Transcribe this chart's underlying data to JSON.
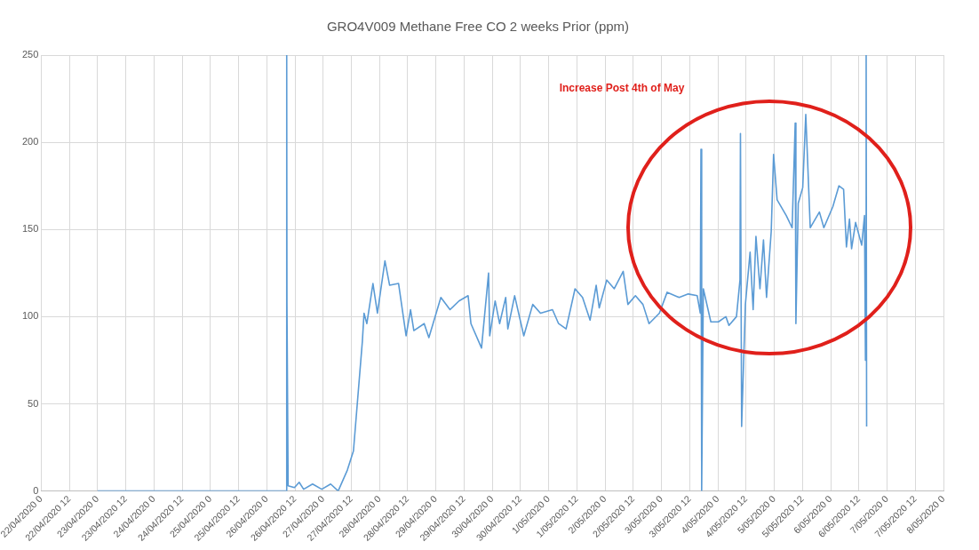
{
  "chart_data": {
    "type": "line",
    "title": "GRO4V009 Methane Free CO 2 weeks Prior (ppm)",
    "annotations": [
      "Increase Post 4th of May"
    ],
    "xlim": [
      "2020-04-22T00:00",
      "2020-05-08T00:00"
    ],
    "xticks": [
      {
        "value": "2020-04-22T00:00",
        "label": "22/04/2020 0"
      },
      {
        "value": "2020-04-22T12:00",
        "label": "22/04/2020 12"
      },
      {
        "value": "2020-04-23T00:00",
        "label": "23/04/2020 0"
      },
      {
        "value": "2020-04-23T12:00",
        "label": "23/04/2020 12"
      },
      {
        "value": "2020-04-24T00:00",
        "label": "24/04/2020 0"
      },
      {
        "value": "2020-04-24T12:00",
        "label": "24/04/2020 12"
      },
      {
        "value": "2020-04-25T00:00",
        "label": "25/04/2020 0"
      },
      {
        "value": "2020-04-25T12:00",
        "label": "25/04/2020 12"
      },
      {
        "value": "2020-04-26T00:00",
        "label": "26/04/2020 0"
      },
      {
        "value": "2020-04-26T12:00",
        "label": "26/04/2020 12"
      },
      {
        "value": "2020-04-27T00:00",
        "label": "27/04/2020 0"
      },
      {
        "value": "2020-04-27T12:00",
        "label": "27/04/2020 12"
      },
      {
        "value": "2020-04-28T00:00",
        "label": "28/04/2020 0"
      },
      {
        "value": "2020-04-28T12:00",
        "label": "28/04/2020 12"
      },
      {
        "value": "2020-04-29T00:00",
        "label": "29/04/2020 0"
      },
      {
        "value": "2020-04-29T12:00",
        "label": "29/04/2020 12"
      },
      {
        "value": "2020-04-30T00:00",
        "label": "30/04/2020 0"
      },
      {
        "value": "2020-04-30T12:00",
        "label": "30/04/2020 12"
      },
      {
        "value": "2020-05-01T00:00",
        "label": "1/05/2020 0"
      },
      {
        "value": "2020-05-01T12:00",
        "label": "1/05/2020 12"
      },
      {
        "value": "2020-05-02T00:00",
        "label": "2/05/2020 0"
      },
      {
        "value": "2020-05-02T12:00",
        "label": "2/05/2020 12"
      },
      {
        "value": "2020-05-03T00:00",
        "label": "3/05/2020 0"
      },
      {
        "value": "2020-05-03T12:00",
        "label": "3/05/2020 12"
      },
      {
        "value": "2020-05-04T00:00",
        "label": "4/05/2020 0"
      },
      {
        "value": "2020-05-04T12:00",
        "label": "4/05/2020 12"
      },
      {
        "value": "2020-05-05T00:00",
        "label": "5/05/2020 0"
      },
      {
        "value": "2020-05-05T12:00",
        "label": "5/05/2020 12"
      },
      {
        "value": "2020-05-06T00:00",
        "label": "6/05/2020 0"
      },
      {
        "value": "2020-05-06T12:00",
        "label": "6/05/2020 12"
      },
      {
        "value": "2020-05-07T00:00",
        "label": "7/05/2020 0"
      },
      {
        "value": "2020-05-07T12:00",
        "label": "7/05/2020 12"
      },
      {
        "value": "2020-05-08T00:00",
        "label": "8/05/2020 0"
      }
    ],
    "ylim": [
      0,
      250
    ],
    "yticks": [
      0,
      50,
      100,
      150,
      200,
      250
    ],
    "grid": true,
    "marker": "none",
    "series": [
      {
        "color": "#5b9bd5",
        "x": [
          "2020-04-23T00:00",
          "2020-04-26T08:24",
          "2020-04-26T08:30",
          "2020-04-26T08:36",
          "2020-04-26T09:06",
          "2020-04-26T11:48",
          "2020-04-26T13:48",
          "2020-04-26T15:42",
          "2020-04-26T19:30",
          "2020-04-26T23:24",
          "2020-04-27T03:12",
          "2020-04-27T06:24",
          "2020-04-27T10:18",
          "2020-04-27T12:54",
          "2020-04-27T16:42",
          "2020-04-27T17:24",
          "2020-04-27T18:36",
          "2020-04-27T21:12",
          "2020-04-27T23:06",
          "2020-04-28T02:18",
          "2020-04-28T04:18",
          "2020-04-28T08:06",
          "2020-04-28T11:18",
          "2020-04-28T13:12",
          "2020-04-28T14:36",
          "2020-04-28T19:00",
          "2020-04-28T21:00",
          "2020-04-29T02:06",
          "2020-04-29T06:00",
          "2020-04-29T09:48",
          "2020-04-29T13:42",
          "2020-04-29T14:54",
          "2020-04-29T19:24",
          "2020-04-29T22:24",
          "2020-04-29T22:54",
          "2020-04-30T01:12",
          "2020-04-30T03:06",
          "2020-04-30T05:42",
          "2020-04-30T06:36",
          "2020-04-30T09:30",
          "2020-04-30T13:24",
          "2020-04-30T17:12",
          "2020-04-30T20:30",
          "2020-05-01T01:36",
          "2020-05-01T04:12",
          "2020-05-01T07:24",
          "2020-05-01T11:12",
          "2020-05-01T14:24",
          "2020-05-01T17:36",
          "2020-05-01T20:12",
          "2020-05-01T21:30",
          "2020-05-02T00:42",
          "2020-05-02T03:54",
          "2020-05-02T07:42",
          "2020-05-02T09:42",
          "2020-05-02T12:54",
          "2020-05-02T16:06",
          "2020-05-02T18:42",
          "2020-05-02T23:06",
          "2020-05-03T02:24",
          "2020-05-03T07:30",
          "2020-05-03T11:24",
          "2020-05-03T15:12",
          "2020-05-03T16:30",
          "2020-05-03T16:48",
          "2020-05-03T17:06",
          "2020-05-03T17:48",
          "2020-05-03T21:00",
          "2020-05-04T00:12",
          "2020-05-04T03:24",
          "2020-05-04T04:42",
          "2020-05-04T07:54",
          "2020-05-04T09:24",
          "2020-05-04T09:36",
          "2020-05-04T10:06",
          "2020-05-04T11:42",
          "2020-05-04T13:42",
          "2020-05-04T15:00",
          "2020-05-04T16:12",
          "2020-05-04T17:54",
          "2020-05-04T19:24",
          "2020-05-04T20:42",
          "2020-05-04T22:42",
          "2020-05-04T23:42",
          "2020-05-05T01:12",
          "2020-05-05T05:06",
          "2020-05-05T07:36",
          "2020-05-05T08:54",
          "2020-05-05T09:12",
          "2020-05-05T10:12",
          "2020-05-05T12:06",
          "2020-05-05T13:24",
          "2020-05-05T15:18",
          "2020-05-05T19:12",
          "2020-05-05T21:06",
          "2020-05-06T00:54",
          "2020-05-06T03:30",
          "2020-05-06T05:30",
          "2020-05-06T06:42",
          "2020-05-06T08:00",
          "2020-05-06T08:54",
          "2020-05-06T10:36",
          "2020-05-06T13:12",
          "2020-05-06T14:24",
          "2020-05-06T14:48",
          "2020-05-06T15:06",
          "2020-05-06T15:18"
        ],
        "values": [
          0,
          0,
          250,
          108,
          3,
          2,
          5,
          1,
          4,
          1,
          4,
          0,
          12,
          23,
          86,
          102,
          96,
          119,
          102,
          132,
          118,
          119,
          89,
          104,
          92,
          96,
          88,
          111,
          104,
          109,
          112,
          96,
          82,
          125,
          89,
          109,
          96,
          111,
          93,
          112,
          89,
          107,
          102,
          104,
          96,
          93,
          116,
          111,
          98,
          118,
          105,
          121,
          116,
          126,
          107,
          112,
          107,
          96,
          102,
          114,
          111,
          113,
          112,
          102,
          196,
          0,
          116,
          97,
          97,
          100,
          95,
          100,
          121,
          205,
          37,
          107,
          137,
          104,
          146,
          116,
          144,
          111,
          149,
          193,
          167,
          158,
          151,
          211,
          96,
          165,
          174,
          216,
          151,
          160,
          151,
          163,
          175,
          173,
          140,
          156,
          139,
          154,
          141,
          158,
          75,
          250,
          37
        ]
      }
    ]
  }
}
